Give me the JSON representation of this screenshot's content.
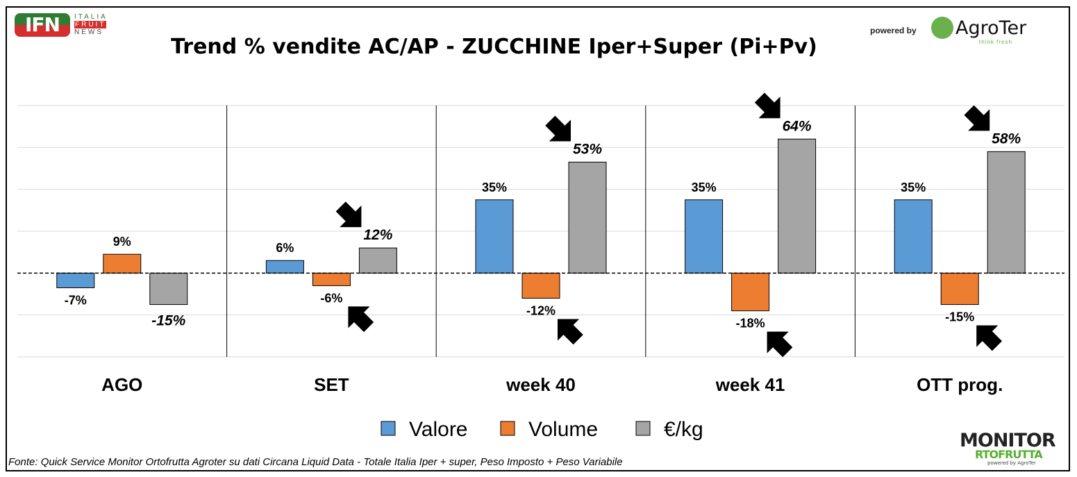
{
  "header": {
    "logo_left": "IFN ITALIA FRUIT NEWS",
    "powered_by": "powered by",
    "logo_right": "AgroTer think fresh"
  },
  "footer": {
    "source": "Fonte: Quick Service Monitor Ortofrutta Agroter su dati Circana Liquid Data - Totale Italia Iper + super, Peso Imposto + Peso Variabile",
    "logo": "MONITOR ORTOFRUTTA powered by AgroTer"
  },
  "colors": {
    "valore": "#5b9bd5",
    "volume": "#ed7d31",
    "prezzo": "#a5a5a5"
  },
  "chart_data": {
    "type": "bar",
    "title": "Trend % vendite AC/AP - ZUCCHINE  Iper+Super (Pi+Pv)",
    "categories": [
      "AGO",
      "SET",
      "week 40",
      "week 41",
      "OTT prog."
    ],
    "series": [
      {
        "name": "Valore",
        "values": [
          -7,
          6,
          35,
          35,
          35
        ],
        "labels": [
          "-7%",
          "6%",
          "35%",
          "35%",
          "35%"
        ]
      },
      {
        "name": "Volume",
        "values": [
          9,
          -6,
          -12,
          -18,
          -15
        ],
        "labels": [
          "9%",
          "-6%",
          "-12%",
          "-18%",
          "-15%"
        ]
      },
      {
        "name": "€/kg",
        "values": [
          -15,
          12,
          53,
          64,
          58
        ],
        "labels": [
          "-15%",
          "12%",
          "53%",
          "64%",
          "58%"
        ]
      }
    ],
    "ylim": [
      -40,
      80
    ],
    "grid": true,
    "legend": "bottom",
    "xlabel": "",
    "ylabel": ""
  }
}
